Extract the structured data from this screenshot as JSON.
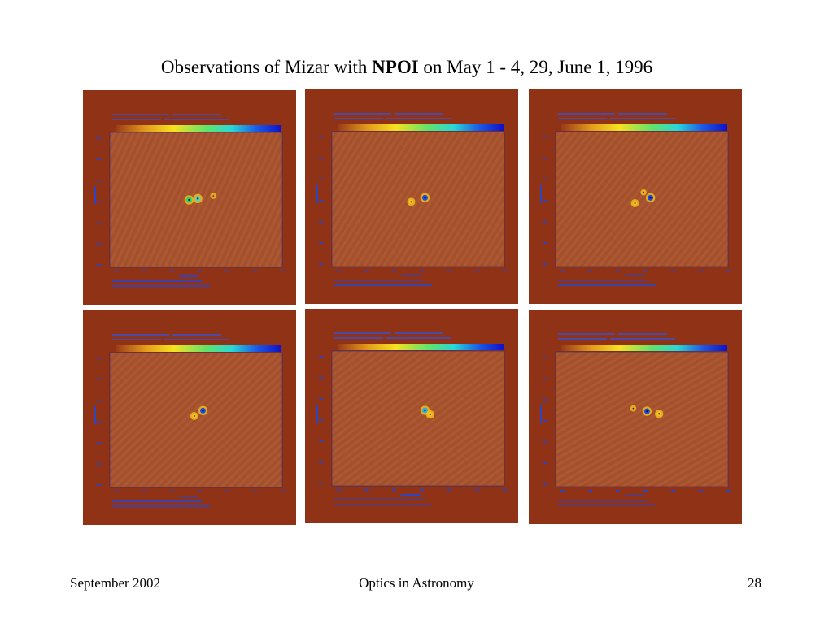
{
  "slide": {
    "title_prefix": "Observations of Mizar with ",
    "title_bold": "NPOI",
    "title_suffix": " on May 1 - 4, 29, June 1, 1996"
  },
  "panels": [
    {
      "name": "panel-1",
      "stars": [
        [
          0.46,
          0.5,
          3.5,
          "#21d66f"
        ],
        [
          0.51,
          0.49,
          3.5,
          "#5cd5b6"
        ],
        [
          0.6,
          0.47,
          1.6,
          "#f0a030"
        ]
      ]
    },
    {
      "name": "panel-2",
      "stars": [
        [
          0.54,
          0.49,
          3.5,
          "#1b4be0"
        ],
        [
          0.46,
          0.52,
          2.8,
          "#f5c11d"
        ]
      ]
    },
    {
      "name": "panel-3",
      "stars": [
        [
          0.55,
          0.49,
          3.5,
          "#1b4be0"
        ],
        [
          0.46,
          0.53,
          2.8,
          "#f5c11d"
        ],
        [
          0.51,
          0.45,
          1.6,
          "#f0a030"
        ]
      ]
    },
    {
      "name": "panel-4",
      "stars": [
        [
          0.54,
          0.43,
          3.5,
          "#1b4be0"
        ],
        [
          0.49,
          0.47,
          2.8,
          "#f5c11d"
        ]
      ]
    },
    {
      "name": "panel-5",
      "stars": [
        [
          0.54,
          0.44,
          3.5,
          "#2dafd9"
        ],
        [
          0.57,
          0.47,
          3.0,
          "#f5c11d"
        ]
      ]
    },
    {
      "name": "panel-6",
      "stars": [
        [
          0.53,
          0.44,
          3.5,
          "#1b4be0"
        ],
        [
          0.6,
          0.46,
          3.0,
          "#f5c11d"
        ],
        [
          0.45,
          0.42,
          1.6,
          "#f0a030"
        ]
      ]
    }
  ],
  "footer": {
    "date": "September 2002",
    "course": "Optics in Astronomy",
    "page": "28"
  }
}
